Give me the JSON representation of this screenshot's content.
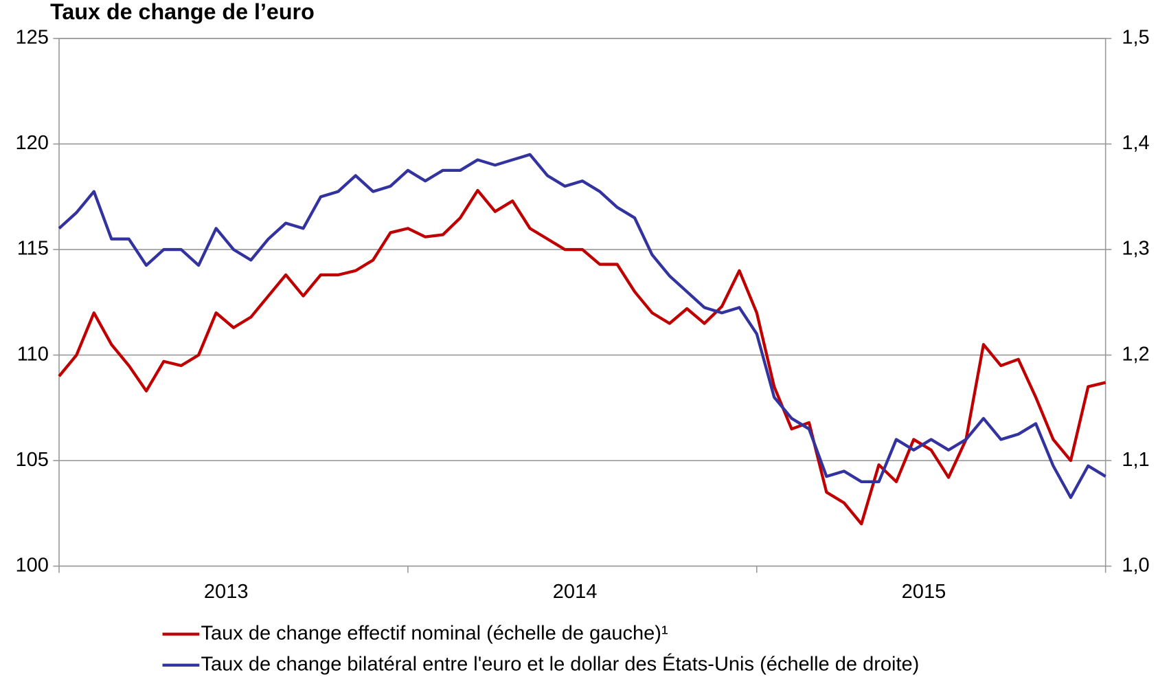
{
  "chart_data": {
    "type": "line",
    "title": "Taux de change de l’euro",
    "x": [
      2013.0,
      2013.05,
      2013.1,
      2013.15,
      2013.2,
      2013.25,
      2013.3,
      2013.35,
      2013.4,
      2013.45,
      2013.5,
      2013.55,
      2013.6,
      2013.65,
      2013.7,
      2013.75,
      2013.8,
      2013.85,
      2013.9,
      2013.95,
      2014.0,
      2014.05,
      2014.1,
      2014.15,
      2014.2,
      2014.25,
      2014.3,
      2014.35,
      2014.4,
      2014.45,
      2014.5,
      2014.55,
      2014.6,
      2014.65,
      2014.7,
      2014.75,
      2014.8,
      2014.85,
      2014.9,
      2014.95,
      2015.0,
      2015.05,
      2015.1,
      2015.15,
      2015.2,
      2015.25,
      2015.3,
      2015.35,
      2015.4,
      2015.45,
      2015.5,
      2015.55,
      2015.6,
      2015.65,
      2015.7,
      2015.75,
      2015.8,
      2015.85,
      2015.9,
      2015.95,
      2016.0
    ],
    "xlim": [
      2013,
      2016
    ],
    "xticks": [
      2013,
      2014,
      2015,
      2016
    ],
    "x_labels": [
      "2013",
      "2014",
      "2015"
    ],
    "ylim": [
      100,
      125
    ],
    "yticks": [
      100,
      105,
      110,
      115,
      120,
      125
    ],
    "y2lim": [
      1.0,
      1.5
    ],
    "y2ticks": [
      {
        "value": 1.0,
        "label": "1,0"
      },
      {
        "value": 1.1,
        "label": "1,1"
      },
      {
        "value": 1.2,
        "label": "1,2"
      },
      {
        "value": 1.3,
        "label": "1,3"
      },
      {
        "value": 1.4,
        "label": "1,4"
      },
      {
        "value": 1.5,
        "label": "1,5"
      }
    ],
    "grid": true,
    "legend": "bottom",
    "series": [
      {
        "name": "Taux de change effectif nominal (échelle de gauche)¹",
        "color": "#c00000",
        "values": [
          109,
          110.0,
          112.0,
          110.5,
          109.5,
          108.3,
          109.7,
          109.5,
          110.0,
          112.0,
          111.3,
          111.8,
          112.8,
          113.8,
          112.8,
          113.8,
          113.8,
          114.0,
          114.5,
          115.8,
          116.0,
          115.6,
          115.7,
          116.5,
          117.8,
          116.8,
          117.3,
          116.0,
          115.5,
          115.0,
          115.0,
          114.3,
          114.3,
          113.0,
          112.0,
          111.5,
          112.2,
          111.5,
          112.3,
          114.0,
          112.0,
          108.5,
          106.5,
          106.8,
          103.5,
          103.0,
          102.0,
          104.8,
          104.0,
          106.0,
          105.5,
          104.2,
          106.0,
          110.5,
          109.5,
          109.8,
          108.0,
          106.0,
          105.0,
          108.5,
          108.7
        ]
      },
      {
        "name": "Taux de change bilatéral entre l'euro et le dollar des États-Unis (échelle de droite)",
        "color": "#3333a0",
        "axis": "y2",
        "values": [
          1.32,
          1.335,
          1.355,
          1.31,
          1.31,
          1.285,
          1.3,
          1.3,
          1.285,
          1.32,
          1.3,
          1.29,
          1.31,
          1.325,
          1.32,
          1.35,
          1.355,
          1.37,
          1.355,
          1.36,
          1.375,
          1.365,
          1.375,
          1.375,
          1.385,
          1.38,
          1.385,
          1.39,
          1.37,
          1.36,
          1.365,
          1.355,
          1.34,
          1.33,
          1.295,
          1.275,
          1.26,
          1.245,
          1.24,
          1.245,
          1.22,
          1.16,
          1.14,
          1.13,
          1.085,
          1.09,
          1.08,
          1.08,
          1.12,
          1.11,
          1.12,
          1.11,
          1.12,
          1.14,
          1.12,
          1.125,
          1.135,
          1.095,
          1.065,
          1.095,
          1.085
        ]
      }
    ]
  }
}
